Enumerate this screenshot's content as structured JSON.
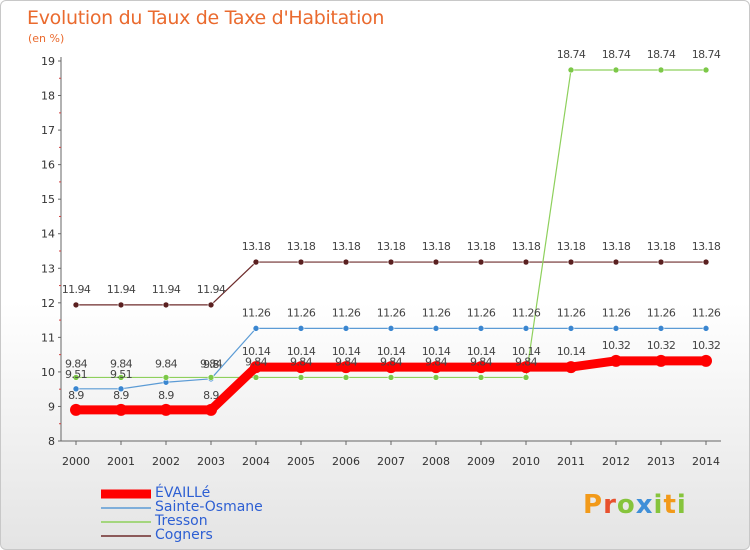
{
  "header": {
    "title": "Evolution du Taux de Taxe d'Habitation",
    "unit": "(en %)"
  },
  "logo": {
    "text": "Proxiti"
  },
  "chart_data": {
    "type": "line",
    "title": "Evolution du Taux de Taxe d'Habitation",
    "ylabel": "(en %)",
    "x": [
      "2000",
      "2001",
      "2002",
      "2003",
      "2004",
      "2005",
      "2006",
      "2007",
      "2008",
      "2009",
      "2010",
      "2011",
      "2012",
      "2013",
      "2014"
    ],
    "ylim": [
      8,
      19
    ],
    "yticks": [
      "8",
      "9",
      "10",
      "11",
      "12",
      "13",
      "14",
      "15",
      "16",
      "17",
      "18",
      "19"
    ],
    "grid": false,
    "legend_position": "bottom-left",
    "series": [
      {
        "name": "ÉVAILLé",
        "color": "#ff0000",
        "values": [
          8.9,
          8.9,
          8.9,
          8.9,
          10.14,
          10.14,
          10.14,
          10.14,
          10.14,
          10.14,
          10.14,
          10.14,
          10.32,
          10.32,
          10.32
        ],
        "labels": [
          "8.9",
          "8.9",
          "8.9",
          "8.9",
          "10.14",
          "10.14",
          "10.14",
          "10.14",
          "10.14",
          "10.14",
          "10.14",
          "10.14",
          "10.32",
          "10.32",
          "10.32"
        ]
      },
      {
        "name": "Sainte-Osmane",
        "color": "#5b9bd5",
        "values": [
          9.51,
          9.51,
          9.7,
          9.8,
          11.26,
          11.26,
          11.26,
          11.26,
          11.26,
          11.26,
          11.26,
          11.26,
          11.26,
          11.26,
          11.26
        ],
        "labels": [
          "9.51",
          "9.51",
          "",
          "9.8",
          "11.26",
          "11.26",
          "11.26",
          "11.26",
          "11.26",
          "11.26",
          "11.26",
          "11.26",
          "11.26",
          "11.26",
          "11.26"
        ]
      },
      {
        "name": "Tresson",
        "color": "#8ed05c",
        "values": [
          9.84,
          9.84,
          9.84,
          9.84,
          9.84,
          9.84,
          9.84,
          9.84,
          9.84,
          9.84,
          9.84,
          18.74,
          18.74,
          18.74,
          18.74
        ],
        "labels": [
          "9.84",
          "9.84",
          "9.84",
          "9.84",
          "9.84",
          "9.84",
          "9.84",
          "9.84",
          "9.84",
          "9.84",
          "9.84",
          "18.74",
          "18.74",
          "18.74",
          "18.74"
        ]
      },
      {
        "name": "Cogners",
        "color": "#6e2c2c",
        "values": [
          11.94,
          11.94,
          11.94,
          11.94,
          13.18,
          13.18,
          13.18,
          13.18,
          13.18,
          13.18,
          13.18,
          13.18,
          13.18,
          13.18,
          13.18
        ],
        "labels": [
          "11.94",
          "11.94",
          "11.94",
          "11.94",
          "13.18",
          "13.18",
          "13.18",
          "13.18",
          "13.18",
          "13.18",
          "13.18",
          "13.18",
          "13.18",
          "13.18",
          "13.18"
        ]
      }
    ]
  }
}
